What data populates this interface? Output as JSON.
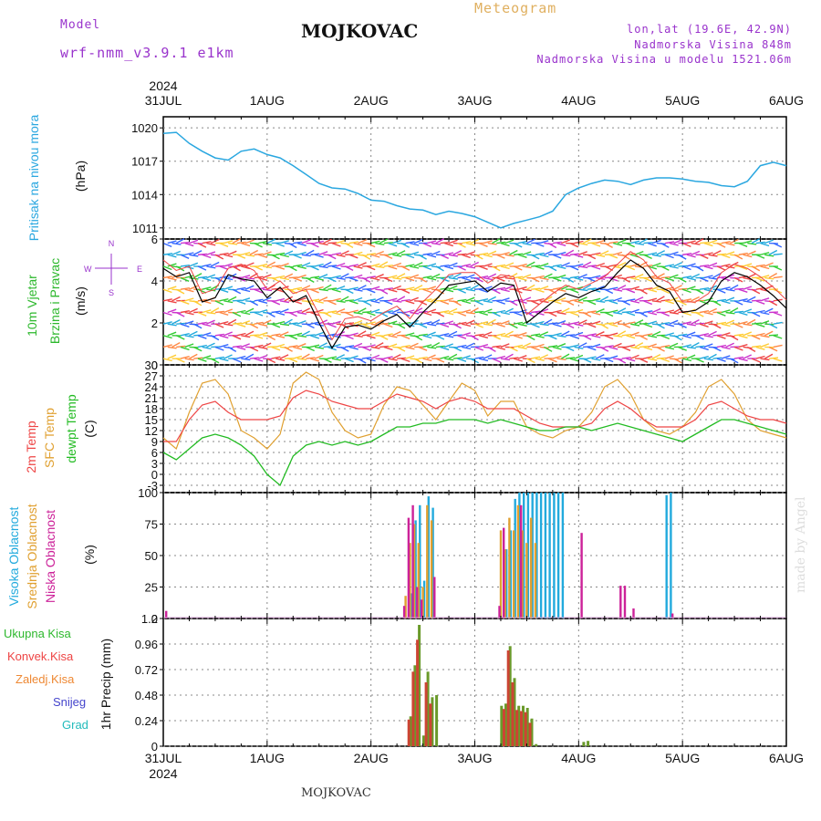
{
  "header": {
    "model_label": "Model",
    "model_name": "wrf-nmm_v3.9.1 e1km",
    "station": "MOJKOVAC",
    "meteogram": "Meteogram",
    "lonlat": "lon,lat (19.6E, 42.9N)",
    "altitude": "Nadmorska Visina 848m",
    "model_altitude": "Nadmorska Visina u modelu 1521.06m",
    "footer_station": "MOJKOVAC",
    "watermark": "made by Angel"
  },
  "colors": {
    "pressure": "#2aa7e0",
    "wind_label": "#2db82d",
    "t2m": "#ee4444",
    "tsfc": "#e0a030",
    "dewpt": "#22bb22",
    "high_cloud": "#22aadd",
    "mid_cloud": "#e0a030",
    "low_cloud": "#cc2299",
    "total_precip": "#6a9a2a",
    "conv_precip": "#cc4433",
    "grid": "#888888",
    "compass": "#9933cc"
  },
  "time_axis": {
    "year": "2024",
    "labels": [
      "31JUL",
      "1AUG",
      "2AUG",
      "3AUG",
      "4AUG",
      "5AUG",
      "6AUG"
    ],
    "days": 6
  },
  "chart_data": [
    {
      "type": "line",
      "id": "pressure",
      "ylabel": "Pritisak na nivou mora",
      "unit": "(hPa)",
      "ylim": [
        1010,
        1021
      ],
      "yticks": [
        1011,
        1014,
        1017,
        1020
      ],
      "x_hours": [
        0,
        3,
        6,
        9,
        12,
        15,
        18,
        21,
        24,
        27,
        30,
        33,
        36,
        39,
        42,
        45,
        48,
        51,
        54,
        57,
        60,
        63,
        66,
        69,
        72,
        75,
        78,
        81,
        84,
        87,
        90,
        93,
        96,
        99,
        102,
        105,
        108,
        111,
        114,
        117,
        120,
        123,
        126,
        129,
        132,
        135,
        138,
        141,
        144
      ],
      "series": [
        {
          "values": [
            1019.5,
            1019.6,
            1018.6,
            1017.9,
            1017.3,
            1017.1,
            1017.9,
            1018.1,
            1017.6,
            1017.3,
            1016.6,
            1015.8,
            1015.0,
            1014.6,
            1014.5,
            1014.1,
            1013.5,
            1013.4,
            1013.0,
            1012.7,
            1012.6,
            1012.2,
            1012.5,
            1012.3,
            1012.0,
            1011.5,
            1011.0,
            1011.4,
            1011.7,
            1012.0,
            1012.5,
            1014.0,
            1014.6,
            1015.0,
            1015.3,
            1015.2,
            1014.9,
            1015.3,
            1015.5,
            1015.5,
            1015.4,
            1015.2,
            1015.1,
            1014.8,
            1014.7,
            1015.2,
            1016.6,
            1016.9,
            1016.6
          ]
        }
      ]
    },
    {
      "type": "line",
      "id": "wind",
      "ylabel_1": "10m Vjetar",
      "ylabel_2": "Brzina i Pravac",
      "unit": "(m/s)",
      "ylim": [
        0,
        6
      ],
      "yticks": [
        0,
        2,
        4,
        6
      ],
      "compass": {
        "w": "W",
        "e": "E",
        "n": "N",
        "s": "S"
      },
      "x_hours": [
        0,
        3,
        6,
        9,
        12,
        15,
        18,
        21,
        24,
        27,
        30,
        33,
        36,
        39,
        42,
        45,
        48,
        51,
        54,
        57,
        60,
        63,
        66,
        69,
        72,
        75,
        78,
        81,
        84,
        87,
        90,
        93,
        96,
        99,
        102,
        105,
        108,
        111,
        114,
        117,
        120,
        123,
        126,
        129,
        132,
        135,
        138,
        141,
        144
      ],
      "series": [
        {
          "values": [
            4.6,
            4.2,
            4.4,
            3.0,
            3.2,
            4.3,
            4.1,
            4.0,
            3.2,
            3.7,
            3.0,
            3.3,
            2.0,
            0.8,
            1.8,
            1.9,
            1.7,
            2.1,
            2.4,
            1.8,
            2.5,
            3.1,
            3.8,
            3.9,
            4.0,
            3.5,
            3.9,
            3.8,
            2.0,
            2.5,
            3.0,
            3.4,
            3.2,
            3.5,
            3.7,
            4.4,
            5.0,
            4.6,
            3.8,
            3.5,
            2.5,
            2.6,
            3.0,
            4.0,
            4.4,
            4.2,
            3.8,
            3.3,
            2.7
          ]
        },
        {
          "values": [
            5.0,
            4.5,
            4.7,
            3.4,
            3.6,
            4.6,
            4.8,
            4.5,
            3.6,
            4.0,
            3.4,
            3.6,
            2.4,
            1.2,
            2.2,
            2.3,
            2.1,
            2.5,
            2.8,
            2.2,
            3.0,
            3.6,
            4.3,
            4.4,
            4.4,
            3.9,
            4.3,
            4.2,
            2.4,
            2.9,
            3.4,
            3.8,
            3.6,
            3.9,
            4.2,
            4.8,
            5.4,
            5.0,
            4.2,
            3.9,
            3.0,
            3.0,
            3.4,
            4.4,
            4.8,
            4.6,
            4.2,
            3.7,
            3.1
          ]
        }
      ]
    },
    {
      "type": "line",
      "id": "temperature",
      "ylabel_1": "2m Temp",
      "ylabel_2": "SFC Temp",
      "ylabel_3": "dewpt Temp",
      "unit": "(C)",
      "ylim": [
        -5,
        30
      ],
      "yticks": [
        -3,
        0,
        3,
        6,
        9,
        12,
        15,
        18,
        21,
        24,
        27,
        30
      ],
      "x_hours": [
        0,
        3,
        6,
        9,
        12,
        15,
        18,
        21,
        24,
        27,
        30,
        33,
        36,
        39,
        42,
        45,
        48,
        51,
        54,
        57,
        60,
        63,
        66,
        69,
        72,
        75,
        78,
        81,
        84,
        87,
        90,
        93,
        96,
        99,
        102,
        105,
        108,
        111,
        114,
        117,
        120,
        123,
        126,
        129,
        132,
        135,
        138,
        141,
        144
      ],
      "series": [
        {
          "values": [
            9,
            9,
            15,
            19,
            20,
            17,
            15,
            15,
            15,
            16,
            21,
            23,
            22,
            20,
            19,
            18,
            18,
            20,
            22,
            21,
            20,
            18,
            20,
            21,
            20,
            18,
            18,
            18,
            16,
            14,
            13,
            13,
            13,
            14,
            18,
            20,
            18,
            15,
            13,
            13,
            13,
            15,
            19,
            20,
            18,
            16,
            15,
            15,
            14
          ]
        },
        {
          "values": [
            10,
            7,
            17,
            25,
            26,
            22,
            12,
            10,
            7,
            11,
            25,
            28,
            26,
            17,
            12,
            10,
            11,
            19,
            24,
            23,
            19,
            15,
            20,
            25,
            23,
            16,
            20,
            20,
            13,
            11,
            10,
            12,
            13,
            17,
            24,
            26,
            22,
            15,
            12,
            11,
            13,
            17,
            24,
            26,
            22,
            15,
            12,
            11,
            10
          ]
        },
        {
          "values": [
            6,
            4,
            7,
            10,
            11,
            10,
            8,
            5,
            0,
            -3,
            5,
            8,
            9,
            8,
            9,
            8,
            9,
            11,
            13,
            13,
            14,
            14,
            15,
            15,
            15,
            14,
            15,
            14,
            13,
            12,
            12,
            13,
            13,
            12,
            13,
            14,
            13,
            12,
            11,
            10,
            9,
            11,
            13,
            15,
            15,
            14,
            13,
            12,
            11
          ]
        }
      ]
    },
    {
      "type": "bar",
      "id": "cloud",
      "ylabel_1": "Visoka Oblacnost",
      "ylabel_2": "Srednja Oblacnost",
      "ylabel_3": "Niska Oblacnost",
      "unit": "(%)",
      "ylim": [
        0,
        100
      ],
      "yticks": [
        0,
        25,
        50,
        75,
        100
      ],
      "series": [
        {
          "name": "high",
          "x_hours": [
            57,
            58,
            59,
            60,
            61,
            62,
            79,
            80,
            81,
            82,
            83,
            84,
            85,
            86,
            87,
            88,
            89,
            90,
            91,
            92,
            116,
            117
          ],
          "values": [
            20,
            78,
            90,
            30,
            97,
            88,
            55,
            70,
            95,
            100,
            100,
            100,
            100,
            100,
            100,
            100,
            100,
            100,
            100,
            100,
            98,
            100
          ]
        },
        {
          "name": "mid",
          "x_hours": [
            56,
            57,
            58,
            59,
            60,
            61,
            62,
            78,
            79,
            80,
            81,
            82,
            83,
            84,
            85,
            86
          ],
          "values": [
            18,
            60,
            75,
            60,
            25,
            90,
            78,
            70,
            55,
            80,
            70,
            90,
            70,
            60,
            80,
            60
          ]
        },
        {
          "name": "low",
          "x_hours": [
            1,
            56,
            57,
            58,
            59,
            60,
            63,
            78,
            79,
            83,
            97,
            106,
            107,
            109,
            118
          ],
          "values": [
            6,
            10,
            80,
            90,
            25,
            15,
            33,
            10,
            72,
            90,
            68,
            26,
            26,
            8,
            4
          ]
        }
      ]
    },
    {
      "type": "bar",
      "id": "precip",
      "ylabel_1": "Ukupna Kisa",
      "ylabel_2": "Konvek.Kisa",
      "ylabel_3": "Zaledj.Kisa",
      "ylabel_4": "Snijeg",
      "ylabel_5": "Grad",
      "unit": "1hr Precip (mm)",
      "ylim": [
        0,
        1.2
      ],
      "yticks": [
        "0",
        "0.24",
        "0.48",
        "0.72",
        "0.96",
        "1.2"
      ],
      "series": [
        {
          "name": "total",
          "x_hours": [
            57,
            58,
            59,
            60,
            61,
            62,
            63,
            78,
            79,
            80,
            81,
            82,
            83,
            84,
            85,
            86,
            97,
            98
          ],
          "values": [
            0.28,
            0.76,
            1.14,
            0.1,
            0.7,
            0.46,
            0.48,
            0.38,
            0.4,
            0.94,
            0.64,
            0.38,
            0.38,
            0.36,
            0.26,
            0.02,
            0.04,
            0.05
          ]
        },
        {
          "name": "convective",
          "x_hours": [
            57,
            58,
            59,
            61,
            62,
            79,
            80,
            81,
            82,
            83,
            84,
            85
          ],
          "values": [
            0.25,
            0.7,
            1.0,
            0.6,
            0.4,
            0.35,
            0.9,
            0.6,
            0.34,
            0.33,
            0.32,
            0.22
          ]
        }
      ]
    }
  ]
}
